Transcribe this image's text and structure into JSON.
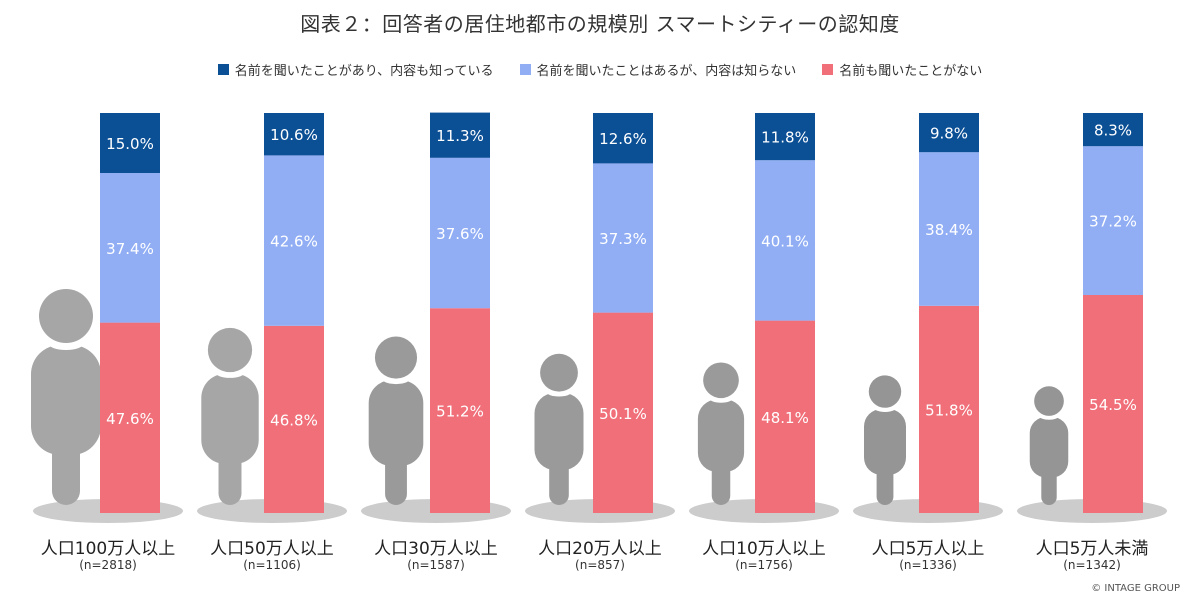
{
  "title": "図表２：回答者の居住地都市の規模別 スマートシティーの認知度",
  "copyright": "© INTAGE GROUP",
  "colors": {
    "known_content": "#0b4f95",
    "heard_only": "#91aef5",
    "never_heard": "#f06f79",
    "figure": "#a6a6a6",
    "shadow": "#cccccc"
  },
  "chart_data": {
    "type": "bar",
    "stacked": true,
    "orientation": "vertical",
    "title": "図表２：回答者の居住地都市の規模別 スマートシティーの認知度",
    "xlabel": "",
    "ylabel": "",
    "ylim": [
      0,
      100
    ],
    "legend_position": "top",
    "categories": [
      "人口100万人以上",
      "人口50万人以上",
      "人口30万人以上",
      "人口20万人以上",
      "人口10万人以上",
      "人口5万人以上",
      "人口5万人未満"
    ],
    "sample_sizes": [
      "(n=2818)",
      "(n=1106)",
      "(n=1587)",
      "(n=857)",
      "(n=1756)",
      "(n=1336)",
      "(n=1342)"
    ],
    "series": [
      {
        "name": "名前も聞いたことがない",
        "color_key": "never_heard",
        "values": [
          47.6,
          46.8,
          51.2,
          50.1,
          48.1,
          51.8,
          54.5
        ]
      },
      {
        "name": "名前を聞いたことはあるが、内容は知らない",
        "color_key": "heard_only",
        "values": [
          37.4,
          42.6,
          37.6,
          37.3,
          40.1,
          38.4,
          37.2
        ]
      },
      {
        "name": "名前を聞いたことがあり、内容も知っている",
        "color_key": "known_content",
        "values": [
          15.0,
          10.6,
          11.3,
          12.6,
          11.8,
          9.8,
          8.3
        ]
      }
    ],
    "legend_order": [
      2,
      1,
      0
    ],
    "value_suffix": "%"
  }
}
